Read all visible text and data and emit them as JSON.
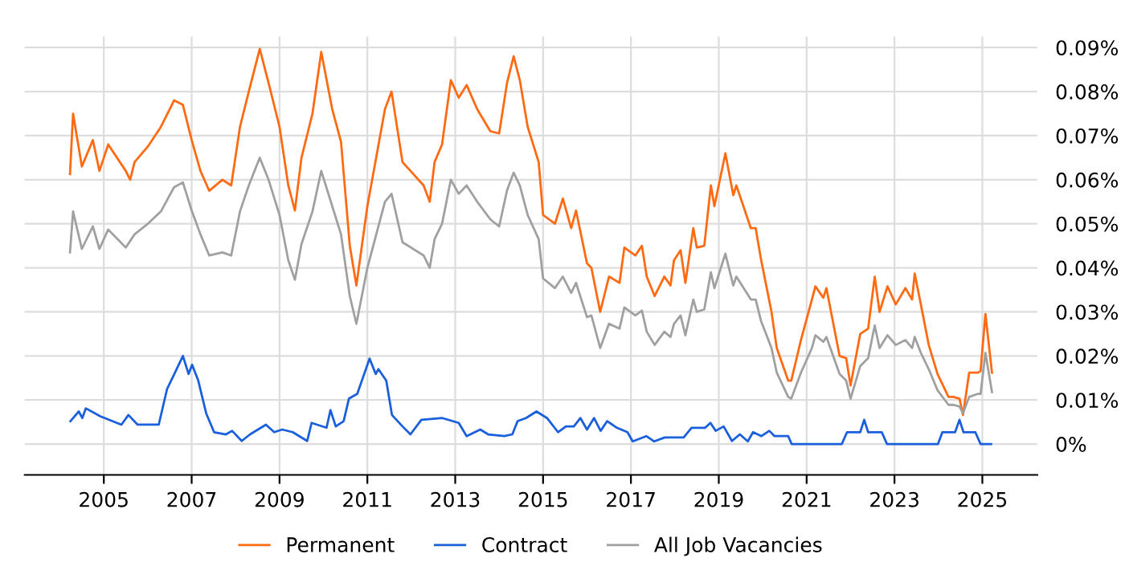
{
  "chart_data": {
    "type": "line",
    "xlim": [
      2003.2,
      2026.25
    ],
    "ylim": [
      -0.007,
      0.0925
    ],
    "xticks": [
      {
        "value": 2005,
        "label": "2005"
      },
      {
        "value": 2007,
        "label": "2007"
      },
      {
        "value": 2009,
        "label": "2009"
      },
      {
        "value": 2011,
        "label": "2011"
      },
      {
        "value": 2013,
        "label": "2013"
      },
      {
        "value": 2015,
        "label": "2015"
      },
      {
        "value": 2017,
        "label": "2017"
      },
      {
        "value": 2019,
        "label": "2019"
      },
      {
        "value": 2021,
        "label": "2021"
      },
      {
        "value": 2023,
        "label": "2023"
      },
      {
        "value": 2025,
        "label": "2025"
      }
    ],
    "yticks": [
      {
        "value": 0,
        "label": "0%"
      },
      {
        "value": 0.01,
        "label": "0.01%"
      },
      {
        "value": 0.02,
        "label": "0.02%"
      },
      {
        "value": 0.03,
        "label": "0.03%"
      },
      {
        "value": 0.04,
        "label": "0.04%"
      },
      {
        "value": 0.05,
        "label": "0.05%"
      },
      {
        "value": 0.06,
        "label": "0.06%"
      },
      {
        "value": 0.07,
        "label": "0.07%"
      },
      {
        "value": 0.08,
        "label": "0.08%"
      },
      {
        "value": 0.09,
        "label": "0.09%"
      }
    ],
    "grid": true,
    "legend": "bottom",
    "marker": "none",
    "line_style": "solid",
    "series": [
      {
        "name": "Permanent",
        "color": "#ff6a13",
        "x": [
          2004.23,
          2004.3,
          2004.5,
          2004.75,
          2004.9,
          2005.1,
          2005.5,
          2005.6,
          2005.7,
          2006.0,
          2006.3,
          2006.6,
          2006.8,
          2007.0,
          2007.2,
          2007.4,
          2007.7,
          2007.9,
          2008.1,
          2008.3,
          2008.55,
          2008.75,
          2009.0,
          2009.2,
          2009.35,
          2009.5,
          2009.75,
          2009.95,
          2010.2,
          2010.4,
          2010.6,
          2010.75,
          2011.0,
          2011.4,
          2011.55,
          2011.8,
          2012.28,
          2012.42,
          2012.53,
          2012.7,
          2012.9,
          2013.08,
          2013.26,
          2013.5,
          2013.8,
          2014.0,
          2014.18,
          2014.33,
          2014.47,
          2014.65,
          2014.9,
          2015.0,
          2015.27,
          2015.45,
          2015.64,
          2015.75,
          2016.0,
          2016.1,
          2016.3,
          2016.5,
          2016.74,
          2016.85,
          2017.1,
          2017.25,
          2017.36,
          2017.54,
          2017.76,
          2017.9,
          2017.98,
          2018.13,
          2018.24,
          2018.42,
          2018.5,
          2018.67,
          2018.82,
          2018.9,
          2019.15,
          2019.33,
          2019.4,
          2019.73,
          2019.84,
          2019.96,
          2020.2,
          2020.32,
          2020.58,
          2020.65,
          2020.87,
          2021.12,
          2021.2,
          2021.38,
          2021.45,
          2021.75,
          2021.9,
          2022.0,
          2022.22,
          2022.4,
          2022.55,
          2022.66,
          2022.84,
          2023.03,
          2023.25,
          2023.4,
          2023.46,
          2023.6,
          2023.78,
          2023.98,
          2024.23,
          2024.34,
          2024.48,
          2024.56,
          2024.7,
          2024.9,
          2024.96,
          2025.07,
          2025.22
        ],
        "values": [
          0.0613,
          0.075,
          0.063,
          0.069,
          0.062,
          0.068,
          0.062,
          0.06,
          0.064,
          0.0675,
          0.072,
          0.078,
          0.077,
          0.069,
          0.062,
          0.0575,
          0.06,
          0.0587,
          0.072,
          0.08,
          0.0897,
          0.082,
          0.072,
          0.0587,
          0.053,
          0.065,
          0.075,
          0.089,
          0.076,
          0.0686,
          0.045,
          0.036,
          0.054,
          0.076,
          0.08,
          0.064,
          0.0587,
          0.055,
          0.064,
          0.068,
          0.0826,
          0.0786,
          0.0815,
          0.076,
          0.071,
          0.0705,
          0.082,
          0.088,
          0.0826,
          0.072,
          0.064,
          0.052,
          0.05,
          0.0557,
          0.049,
          0.053,
          0.041,
          0.04,
          0.03,
          0.038,
          0.0366,
          0.0446,
          0.0428,
          0.045,
          0.038,
          0.0336,
          0.038,
          0.036,
          0.0417,
          0.044,
          0.0366,
          0.049,
          0.0446,
          0.045,
          0.0587,
          0.054,
          0.066,
          0.0565,
          0.0587,
          0.049,
          0.049,
          0.042,
          0.03,
          0.0218,
          0.0144,
          0.0144,
          0.0236,
          0.0328,
          0.0358,
          0.0332,
          0.0354,
          0.02,
          0.0195,
          0.0133,
          0.025,
          0.0262,
          0.038,
          0.03,
          0.0358,
          0.0317,
          0.0354,
          0.0328,
          0.0387,
          0.0317,
          0.0225,
          0.0159,
          0.0107,
          0.0107,
          0.0103,
          0.0066,
          0.0162,
          0.0162,
          0.0166,
          0.0295,
          0.0162
        ]
      },
      {
        "name": "Contract",
        "color": "#1a5fdc",
        "x": [
          2004.24,
          2004.43,
          2004.51,
          2004.59,
          2004.92,
          2005.4,
          2005.56,
          2005.77,
          2006.25,
          2006.44,
          2006.62,
          2006.8,
          2006.93,
          2007.01,
          2007.15,
          2007.33,
          2007.51,
          2007.78,
          2007.92,
          2008.14,
          2008.33,
          2008.69,
          2008.88,
          2009.06,
          2009.3,
          2009.63,
          2009.73,
          2010.07,
          2010.16,
          2010.28,
          2010.46,
          2010.58,
          2010.77,
          2011.05,
          2011.19,
          2011.25,
          2011.43,
          2011.56,
          2011.8,
          2011.98,
          2012.23,
          2012.71,
          2013.08,
          2013.26,
          2013.57,
          2013.75,
          2014.12,
          2014.3,
          2014.42,
          2014.61,
          2014.85,
          2015.09,
          2015.34,
          2015.52,
          2015.7,
          2015.85,
          2016.0,
          2016.16,
          2016.31,
          2016.46,
          2016.68,
          2016.92,
          2017.04,
          2017.35,
          2017.53,
          2017.77,
          2018.2,
          2018.38,
          2018.69,
          2018.81,
          2018.93,
          2019.11,
          2019.3,
          2019.48,
          2019.66,
          2019.78,
          2019.97,
          2020.15,
          2020.27,
          2020.58,
          2020.66,
          2021.8,
          2021.92,
          2022.22,
          2022.31,
          2022.4,
          2022.71,
          2022.83,
          2023.99,
          2024.09,
          2024.38,
          2024.48,
          2024.57,
          2024.84,
          2024.96,
          2025.2
        ],
        "values": [
          0.0052,
          0.0074,
          0.0059,
          0.0081,
          0.0063,
          0.0044,
          0.0066,
          0.0044,
          0.0044,
          0.0125,
          0.0162,
          0.02,
          0.0159,
          0.018,
          0.0144,
          0.007,
          0.0027,
          0.0022,
          0.003,
          0.0007,
          0.0022,
          0.0044,
          0.0027,
          0.0033,
          0.0027,
          0.0007,
          0.0048,
          0.0037,
          0.0077,
          0.004,
          0.0052,
          0.0103,
          0.0114,
          0.0194,
          0.0159,
          0.017,
          0.0144,
          0.0066,
          0.004,
          0.0022,
          0.0055,
          0.0059,
          0.0048,
          0.0018,
          0.0033,
          0.0022,
          0.0018,
          0.0022,
          0.0052,
          0.0059,
          0.0074,
          0.0059,
          0.0027,
          0.004,
          0.004,
          0.0059,
          0.0033,
          0.0059,
          0.003,
          0.0052,
          0.0037,
          0.0027,
          0.0006,
          0.0018,
          0.0006,
          0.0015,
          0.0015,
          0.0037,
          0.0037,
          0.0048,
          0.003,
          0.004,
          0.0007,
          0.0022,
          0.0006,
          0.0027,
          0.0018,
          0.003,
          0.0018,
          0.0018,
          0,
          0,
          0.0027,
          0.0027,
          0.0055,
          0.0027,
          0.0027,
          0,
          0,
          0.0027,
          0.0027,
          0.0055,
          0.0027,
          0.0027,
          0,
          0
        ]
      },
      {
        "name": "All Job Vacancies",
        "color": "#a0a0a0",
        "x": [
          2004.23,
          2004.3,
          2004.5,
          2004.75,
          2004.9,
          2005.1,
          2005.5,
          2005.7,
          2006.0,
          2006.3,
          2006.6,
          2006.8,
          2007.0,
          2007.2,
          2007.4,
          2007.7,
          2007.9,
          2008.1,
          2008.3,
          2008.55,
          2008.75,
          2009.0,
          2009.2,
          2009.35,
          2009.5,
          2009.75,
          2009.95,
          2010.2,
          2010.4,
          2010.6,
          2010.75,
          2011.0,
          2011.4,
          2011.55,
          2011.8,
          2012.28,
          2012.42,
          2012.53,
          2012.7,
          2012.9,
          2013.08,
          2013.26,
          2013.5,
          2013.8,
          2014.0,
          2014.18,
          2014.33,
          2014.47,
          2014.65,
          2014.9,
          2015.0,
          2015.27,
          2015.45,
          2015.64,
          2015.75,
          2016.0,
          2016.1,
          2016.3,
          2016.5,
          2016.74,
          2016.85,
          2017.1,
          2017.25,
          2017.36,
          2017.54,
          2017.76,
          2017.9,
          2017.98,
          2018.13,
          2018.24,
          2018.42,
          2018.5,
          2018.67,
          2018.82,
          2018.9,
          2019.15,
          2019.33,
          2019.4,
          2019.73,
          2019.84,
          2019.96,
          2020.2,
          2020.32,
          2020.58,
          2020.65,
          2020.87,
          2021.12,
          2021.2,
          2021.38,
          2021.45,
          2021.75,
          2021.9,
          2022.0,
          2022.22,
          2022.4,
          2022.55,
          2022.66,
          2022.84,
          2023.03,
          2023.25,
          2023.4,
          2023.46,
          2023.6,
          2023.78,
          2023.98,
          2024.23,
          2024.34,
          2024.48,
          2024.56,
          2024.7,
          2024.9,
          2024.96,
          2025.07,
          2025.22
        ],
        "values": [
          0.0435,
          0.0528,
          0.0443,
          0.0494,
          0.0443,
          0.0487,
          0.0446,
          0.0476,
          0.05,
          0.0528,
          0.0583,
          0.0594,
          0.053,
          0.0476,
          0.0428,
          0.0435,
          0.0428,
          0.0528,
          0.0587,
          0.065,
          0.06,
          0.052,
          0.0417,
          0.0373,
          0.0454,
          0.0528,
          0.062,
          0.054,
          0.0476,
          0.0336,
          0.0273,
          0.04,
          0.055,
          0.0568,
          0.0458,
          0.0428,
          0.04,
          0.0465,
          0.05,
          0.06,
          0.0568,
          0.0587,
          0.055,
          0.051,
          0.0494,
          0.0576,
          0.0616,
          0.0587,
          0.052,
          0.0465,
          0.0376,
          0.0354,
          0.038,
          0.0343,
          0.0366,
          0.0288,
          0.0292,
          0.0218,
          0.0273,
          0.0262,
          0.031,
          0.0292,
          0.0303,
          0.0255,
          0.0225,
          0.0255,
          0.0243,
          0.0273,
          0.0292,
          0.0247,
          0.0328,
          0.03,
          0.0306,
          0.039,
          0.0354,
          0.0432,
          0.036,
          0.038,
          0.0328,
          0.0328,
          0.028,
          0.0218,
          0.0162,
          0.0107,
          0.0103,
          0.0162,
          0.0218,
          0.0247,
          0.0232,
          0.0243,
          0.0159,
          0.0144,
          0.0103,
          0.0177,
          0.0195,
          0.0269,
          0.0218,
          0.0247,
          0.0225,
          0.0236,
          0.0218,
          0.0243,
          0.0207,
          0.017,
          0.0122,
          0.0089,
          0.0089,
          0.0085,
          0.007,
          0.0107,
          0.0114,
          0.0114,
          0.0207,
          0.0118
        ]
      }
    ]
  }
}
